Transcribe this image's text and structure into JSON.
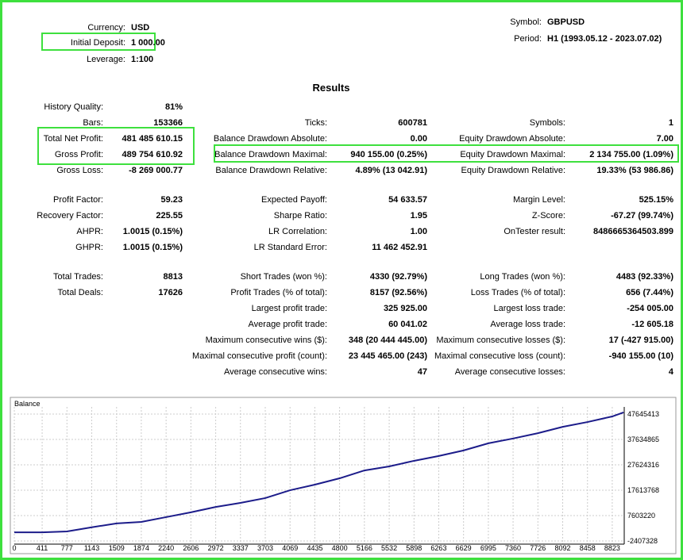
{
  "header": {
    "currency": {
      "label": "Currency:",
      "value": "USD"
    },
    "initial_deposit": {
      "label": "Initial Deposit:",
      "value": "1 000.00"
    },
    "leverage": {
      "label": "Leverage:",
      "value": "1:100"
    },
    "symbol": {
      "label": "Symbol:",
      "value": "GBPUSD"
    },
    "period": {
      "label": "Period:",
      "value": "H1 (1993.05.12 - 2023.07.02)"
    }
  },
  "results": {
    "title": "Results",
    "sections": [
      {
        "rows": [
          [
            {
              "label": "History Quality:",
              "value": "81%"
            },
            null,
            null
          ],
          [
            {
              "label": "Bars:",
              "value": "153366"
            },
            {
              "label": "Ticks:",
              "value": "600781"
            },
            {
              "label": "Symbols:",
              "value": "1"
            }
          ],
          [
            {
              "label": "Total Net Profit:",
              "value": "481 485 610.15"
            },
            {
              "label": "Balance Drawdown Absolute:",
              "value": "0.00"
            },
            {
              "label": "Equity Drawdown Absolute:",
              "value": "7.00"
            }
          ],
          [
            {
              "label": "Gross Profit:",
              "value": "489 754 610.92"
            },
            {
              "label": "Balance Drawdown Maximal:",
              "value": "940 155.00 (0.25%)"
            },
            {
              "label": "Equity Drawdown Maximal:",
              "value": "2 134 755.00 (1.09%)"
            }
          ],
          [
            {
              "label": "Gross Loss:",
              "value": "-8 269 000.77"
            },
            {
              "label": "Balance Drawdown Relative:",
              "value": "4.89% (13 042.91)"
            },
            {
              "label": "Equity Drawdown Relative:",
              "value": "19.33% (53 986.86)"
            }
          ]
        ]
      },
      {
        "rows": [
          [
            {
              "label": "Profit Factor:",
              "value": "59.23"
            },
            {
              "label": "Expected Payoff:",
              "value": "54 633.57"
            },
            {
              "label": "Margin Level:",
              "value": "525.15%"
            }
          ],
          [
            {
              "label": "Recovery Factor:",
              "value": "225.55"
            },
            {
              "label": "Sharpe Ratio:",
              "value": "1.95"
            },
            {
              "label": "Z-Score:",
              "value": "-67.27 (99.74%)"
            }
          ],
          [
            {
              "label": "AHPR:",
              "value": "1.0015 (0.15%)"
            },
            {
              "label": "LR Correlation:",
              "value": "1.00"
            },
            {
              "label": "OnTester result:",
              "value": "8486665364503.899"
            }
          ],
          [
            {
              "label": "GHPR:",
              "value": "1.0015 (0.15%)"
            },
            {
              "label": "LR Standard Error:",
              "value": "11 462 452.91"
            },
            null
          ]
        ]
      },
      {
        "rows": [
          [
            {
              "label": "Total Trades:",
              "value": "8813"
            },
            {
              "label": "Short Trades (won %):",
              "value": "4330 (92.79%)"
            },
            {
              "label": "Long Trades (won %):",
              "value": "4483 (92.33%)"
            }
          ],
          [
            {
              "label": "Total Deals:",
              "value": "17626"
            },
            {
              "label": "Profit Trades (% of total):",
              "value": "8157 (92.56%)"
            },
            {
              "label": "Loss Trades (% of total):",
              "value": "656 (7.44%)"
            }
          ],
          [
            null,
            {
              "label": "Largest profit trade:",
              "value": "325 925.00"
            },
            {
              "label": "Largest loss trade:",
              "value": "-254 005.00"
            }
          ],
          [
            null,
            {
              "label": "Average profit trade:",
              "value": "60 041.02"
            },
            {
              "label": "Average loss trade:",
              "value": "-12 605.18"
            }
          ],
          [
            null,
            {
              "label": "Maximum consecutive wins ($):",
              "value": "348 (20 444 445.00)"
            },
            {
              "label": "Maximum consecutive losses ($):",
              "value": "17 (-427 915.00)"
            }
          ],
          [
            null,
            {
              "label": "Maximal consecutive profit (count):",
              "value": "23 445 465.00 (243)"
            },
            {
              "label": "Maximal consecutive loss (count):",
              "value": "-940 155.00 (10)"
            }
          ],
          [
            null,
            {
              "label": "Average consecutive wins:",
              "value": "47"
            },
            {
              "label": "Average consecutive losses:",
              "value": "4"
            }
          ]
        ]
      }
    ]
  },
  "balance_chart": {
    "type": "line",
    "title": "Balance",
    "color": "#1c1c8a",
    "grid": true,
    "x": [
      0,
      411,
      777,
      1143,
      1509,
      1874,
      2240,
      2606,
      2972,
      3337,
      3703,
      4069,
      4435,
      4800,
      5166,
      5532,
      5898,
      6263,
      6629,
      6995,
      7360,
      7726,
      8092,
      8458,
      8823,
      8990
    ],
    "values": [
      1000000,
      1000000,
      1350000,
      3000000,
      4500000,
      5100000,
      7000000,
      8900000,
      11000000,
      12600000,
      14500000,
      17600000,
      19800000,
      22300000,
      25400000,
      27000000,
      29200000,
      31100000,
      33300000,
      36100000,
      38000000,
      40100000,
      42600000,
      44500000,
      46700000,
      48300000
    ],
    "xlim": [
      0,
      9000
    ],
    "xticks": [
      0,
      411,
      777,
      1143,
      1509,
      1874,
      2240,
      2606,
      2972,
      3337,
      3703,
      4069,
      4435,
      4800,
      5166,
      5532,
      5898,
      6263,
      6629,
      6995,
      7360,
      7726,
      8092,
      8458,
      8823
    ],
    "ylim": [
      -3660000,
      50460000
    ],
    "yticks": [
      47645413,
      37634865,
      27624316,
      17613768,
      7603220,
      -2407328
    ]
  }
}
